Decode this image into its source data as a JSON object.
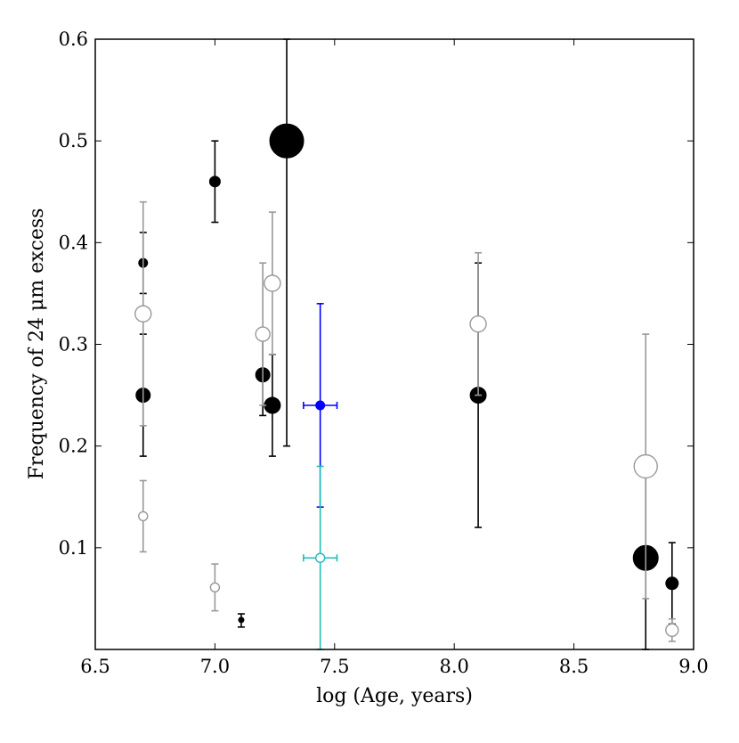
{
  "chart_data": {
    "type": "scatter",
    "title": "",
    "xlabel": "log (Age, years)",
    "ylabel": "Frequency of 24 μm excess",
    "xlim": [
      6.5,
      9.0
    ],
    "ylim": [
      0.0,
      0.6
    ],
    "x_ticks": [
      "6.5",
      "7.0",
      "7.5",
      "8.0",
      "8.5",
      "9.0"
    ],
    "y_ticks": [
      "0.1",
      "0.2",
      "0.3",
      "0.4",
      "0.5",
      "0.6"
    ],
    "grid": false,
    "legend": "none",
    "colors": {
      "black": "#000000",
      "gray": "#999999",
      "blue": "#0000ff",
      "cyan": "#22bbbb"
    },
    "points": [
      {
        "x": 6.7,
        "y": 0.38,
        "yerr": [
          0.35,
          0.41
        ],
        "filled": true,
        "color": "black",
        "size": 5
      },
      {
        "x": 6.7,
        "y": 0.25,
        "yerr": [
          0.19,
          0.31
        ],
        "filled": true,
        "color": "black",
        "size": 8
      },
      {
        "x": 7.0,
        "y": 0.46,
        "yerr": [
          0.42,
          0.5
        ],
        "filled": true,
        "color": "black",
        "size": 6
      },
      {
        "x": 7.11,
        "y": 0.029,
        "yerr": [
          0.022,
          0.035
        ],
        "filled": true,
        "color": "black",
        "size": 3
      },
      {
        "x": 7.2,
        "y": 0.27,
        "yerr": [
          0.23,
          0.31
        ],
        "filled": true,
        "color": "black",
        "size": 8
      },
      {
        "x": 7.24,
        "y": 0.24,
        "yerr": [
          0.19,
          0.29
        ],
        "filled": true,
        "color": "black",
        "size": 9
      },
      {
        "x": 7.3,
        "y": 0.5,
        "yerr": [
          0.2,
          0.6
        ],
        "filled": true,
        "color": "black",
        "size": 19
      },
      {
        "x": 8.1,
        "y": 0.25,
        "yerr": [
          0.12,
          0.38
        ],
        "filled": true,
        "color": "black",
        "size": 9
      },
      {
        "x": 8.8,
        "y": 0.09,
        "yerr": [
          0.0,
          0.18
        ],
        "filled": true,
        "color": "black",
        "size": 14
      },
      {
        "x": 8.91,
        "y": 0.065,
        "yerr": [
          0.025,
          0.105
        ],
        "filled": true,
        "color": "black",
        "size": 7
      },
      {
        "x": 6.7,
        "y": 0.33,
        "yerr": [
          0.22,
          0.44
        ],
        "filled": false,
        "color": "gray",
        "size": 9
      },
      {
        "x": 6.7,
        "y": 0.131,
        "yerr": [
          0.096,
          0.166
        ],
        "filled": false,
        "color": "gray",
        "size": 5
      },
      {
        "x": 7.0,
        "y": 0.061,
        "yerr": [
          0.038,
          0.084
        ],
        "filled": false,
        "color": "gray",
        "size": 5
      },
      {
        "x": 7.2,
        "y": 0.31,
        "yerr": [
          0.24,
          0.38
        ],
        "filled": false,
        "color": "gray",
        "size": 8
      },
      {
        "x": 7.24,
        "y": 0.36,
        "yerr": [
          0.29,
          0.43
        ],
        "filled": false,
        "color": "gray",
        "size": 9
      },
      {
        "x": 8.1,
        "y": 0.32,
        "yerr": [
          0.25,
          0.39
        ],
        "filled": false,
        "color": "gray",
        "size": 9
      },
      {
        "x": 8.8,
        "y": 0.18,
        "yerr": [
          0.05,
          0.31
        ],
        "filled": false,
        "color": "gray",
        "size": 13
      },
      {
        "x": 8.91,
        "y": 0.019,
        "yerr": [
          0.008,
          0.03
        ],
        "filled": false,
        "color": "gray",
        "size": 7
      },
      {
        "x": 7.44,
        "y": 0.24,
        "yerr": [
          0.14,
          0.34
        ],
        "xerr": [
          7.37,
          7.51
        ],
        "filled": true,
        "color": "blue",
        "size": 5
      },
      {
        "x": 7.44,
        "y": 0.09,
        "yerr": [
          0.0,
          0.18
        ],
        "xerr": [
          7.37,
          7.51
        ],
        "filled": false,
        "color": "cyan",
        "size": 5
      }
    ]
  }
}
